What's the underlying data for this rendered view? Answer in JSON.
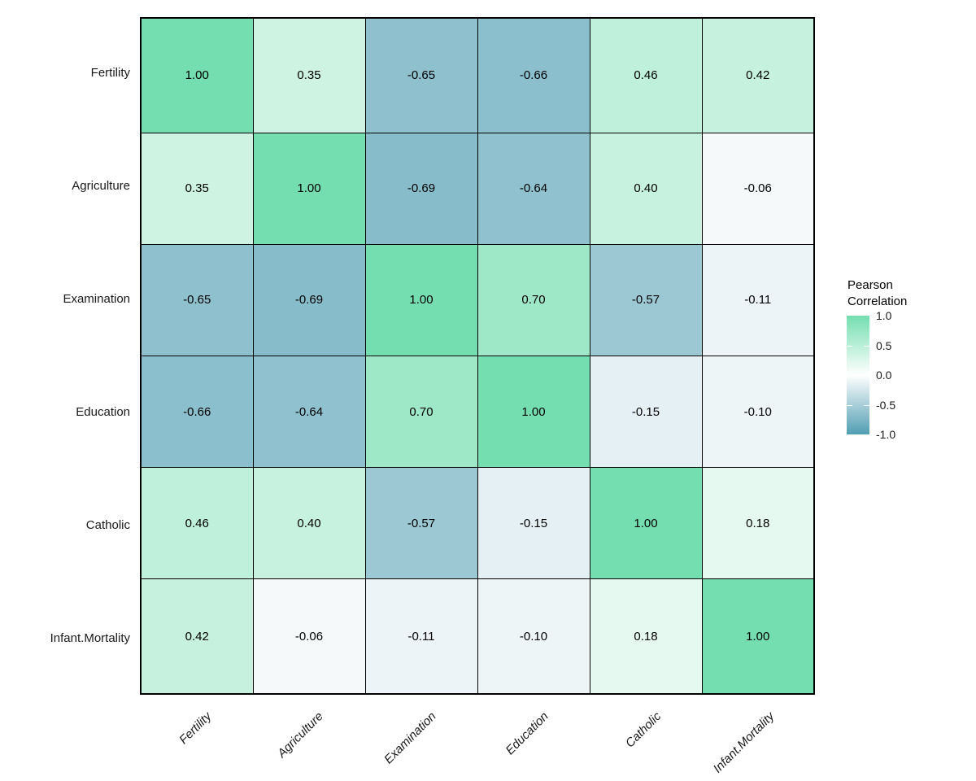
{
  "chart_data": {
    "type": "heatmap",
    "title": "",
    "variables": [
      "Fertility",
      "Agriculture",
      "Examination",
      "Education",
      "Catholic",
      "Infant.Mortality"
    ],
    "matrix": [
      [
        1.0,
        0.35,
        -0.65,
        -0.66,
        0.46,
        0.42
      ],
      [
        0.35,
        1.0,
        -0.69,
        -0.64,
        0.4,
        -0.06
      ],
      [
        -0.65,
        -0.69,
        1.0,
        0.7,
        -0.57,
        -0.11
      ],
      [
        -0.66,
        -0.64,
        0.7,
        1.0,
        -0.15,
        -0.1
      ],
      [
        0.46,
        0.4,
        -0.57,
        -0.15,
        1.0,
        0.18
      ],
      [
        0.42,
        -0.06,
        -0.11,
        -0.1,
        0.18,
        1.0
      ]
    ],
    "cell_label_decimals": 2,
    "legend": {
      "title_lines": [
        "Pearson",
        "Correlation"
      ],
      "tick_labels": [
        "1.0",
        "0.5",
        "0.0",
        "-0.5",
        "-1.0"
      ],
      "tick_values": [
        1.0,
        0.5,
        0.0,
        -0.5,
        -1.0
      ],
      "range": [
        -1.0,
        1.0
      ],
      "position": "right"
    },
    "colors": {
      "high": "#74DEB0",
      "mid": "#FFFFFF",
      "low": "#519EB3",
      "grid_line": "#000000",
      "cell_text": "#000000",
      "axis_text": "#1A1A1A",
      "background": "#FFFFFF"
    },
    "grid": "off"
  }
}
